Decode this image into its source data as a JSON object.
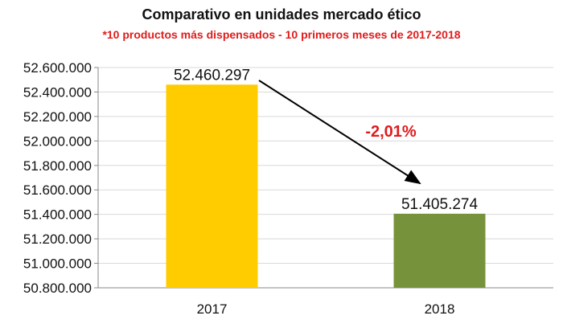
{
  "chart_data": {
    "type": "bar",
    "title": "Comparativo en unidades mercado ético",
    "subtitle": "*10 productos más dispensados - 10 primeros meses de 2017-2018",
    "categories": [
      "2017",
      "2018"
    ],
    "values": [
      52460297,
      51405274
    ],
    "data_labels": [
      "52.460.297",
      "51.405.274"
    ],
    "bar_colors": [
      "#ffcc00",
      "#76933c"
    ],
    "ylim": [
      50800000,
      52600000
    ],
    "yticks": [
      52600000,
      52400000,
      52200000,
      52000000,
      51800000,
      51600000,
      51400000,
      51200000,
      51000000,
      50800000
    ],
    "ytick_labels": [
      "52.600.000",
      "52.400.000",
      "52.200.000",
      "52.000.000",
      "51.800.000",
      "51.600.000",
      "51.400.000",
      "51.200.000",
      "51.000.000",
      "50.800.000"
    ],
    "grid": true,
    "annotation": {
      "text": "-2,01%",
      "color": "#e01b1b"
    }
  }
}
